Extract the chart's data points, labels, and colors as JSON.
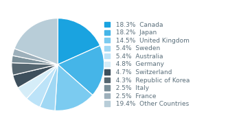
{
  "labels": [
    "Canada",
    "Japan",
    "United Kingdom",
    "Sweden",
    "Australia",
    "Germany",
    "Switzerland",
    "Republic of Korea",
    "Italy",
    "France",
    "Other Countries"
  ],
  "values": [
    18.3,
    18.2,
    14.5,
    5.4,
    5.4,
    4.8,
    4.7,
    4.3,
    2.5,
    2.5,
    19.4
  ],
  "colors": [
    "#1aa3e0",
    "#45b5e8",
    "#7bcbf0",
    "#a0d8f4",
    "#bce3f8",
    "#d5edf8",
    "#3d4f5c",
    "#556670",
    "#7a8f99",
    "#9db0bb",
    "#b8cdd8"
  ],
  "pct_labels": [
    "18.3%",
    "18.2%",
    "14.5%",
    "5.4%",
    "5.4%",
    "4.8%",
    "4.7%",
    "4.3%",
    "2.5%",
    "2.5%",
    "19.4%"
  ],
  "legend_fontsize": 6.5,
  "background_color": "#ffffff",
  "startangle": 90,
  "text_color": "#5a6e7a"
}
